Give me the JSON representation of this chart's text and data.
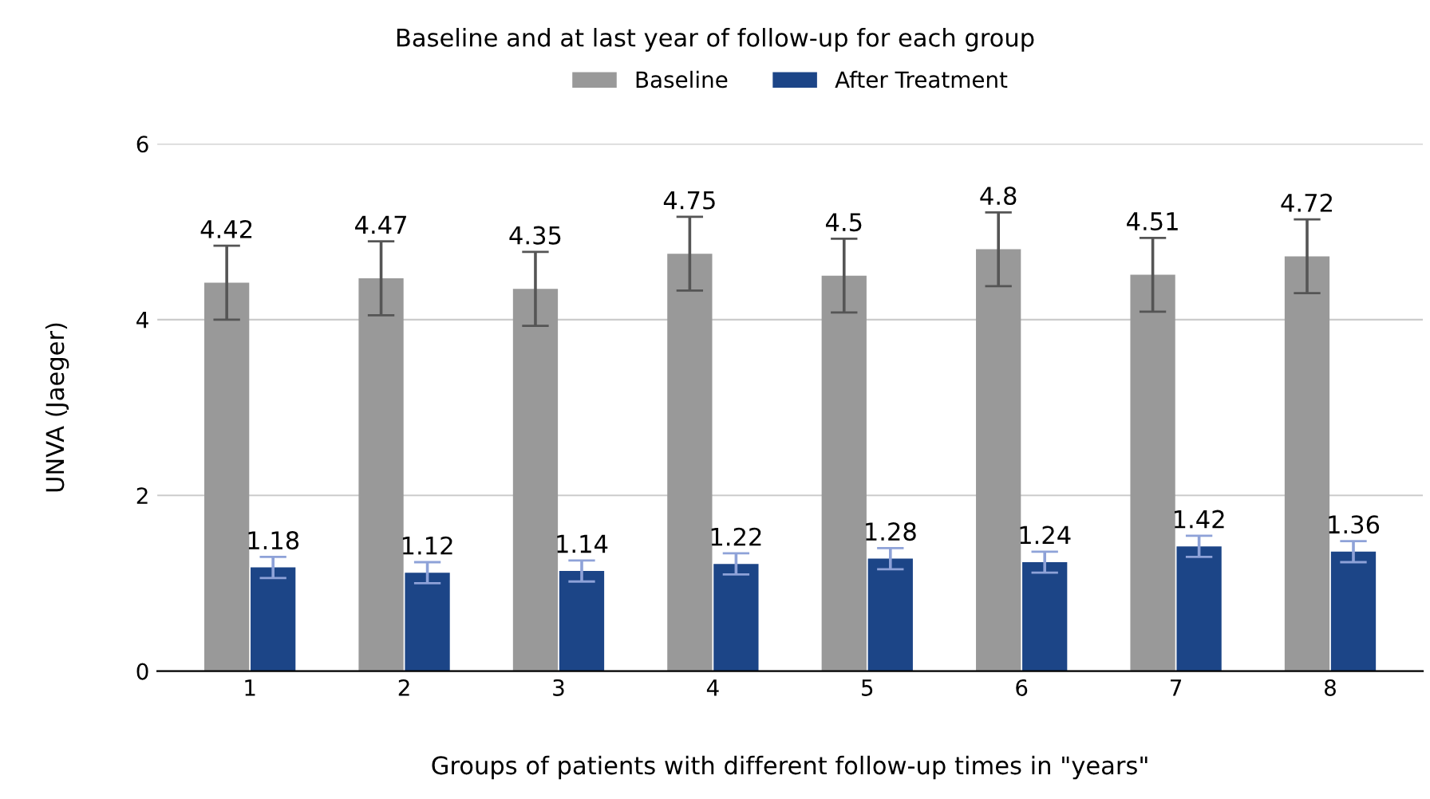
{
  "chart_data": {
    "type": "bar",
    "title": "Baseline and at last year of follow-up for each group",
    "xlabel": "Groups of patients with different follow-up times in \"years\"",
    "ylabel": "UNVA (Jaeger)",
    "categories": [
      "1",
      "2",
      "3",
      "4",
      "5",
      "6",
      "7",
      "8"
    ],
    "series": [
      {
        "name": "Baseline",
        "color": "#999999",
        "values": [
          4.42,
          4.47,
          4.35,
          4.75,
          4.5,
          4.8,
          4.51,
          4.72
        ],
        "errors": [
          0.42,
          0.42,
          0.42,
          0.42,
          0.42,
          0.42,
          0.42,
          0.42
        ]
      },
      {
        "name": "After Treatment",
        "color": "#1c4587",
        "values": [
          1.18,
          1.12,
          1.14,
          1.22,
          1.28,
          1.24,
          1.42,
          1.36
        ],
        "errors": [
          0.12,
          0.12,
          0.12,
          0.12,
          0.12,
          0.12,
          0.12,
          0.12
        ]
      }
    ],
    "ylim": [
      0,
      6
    ],
    "yticks": [
      0,
      2,
      4,
      6
    ],
    "grid": "y",
    "legend": "top",
    "data_labels": true
  }
}
